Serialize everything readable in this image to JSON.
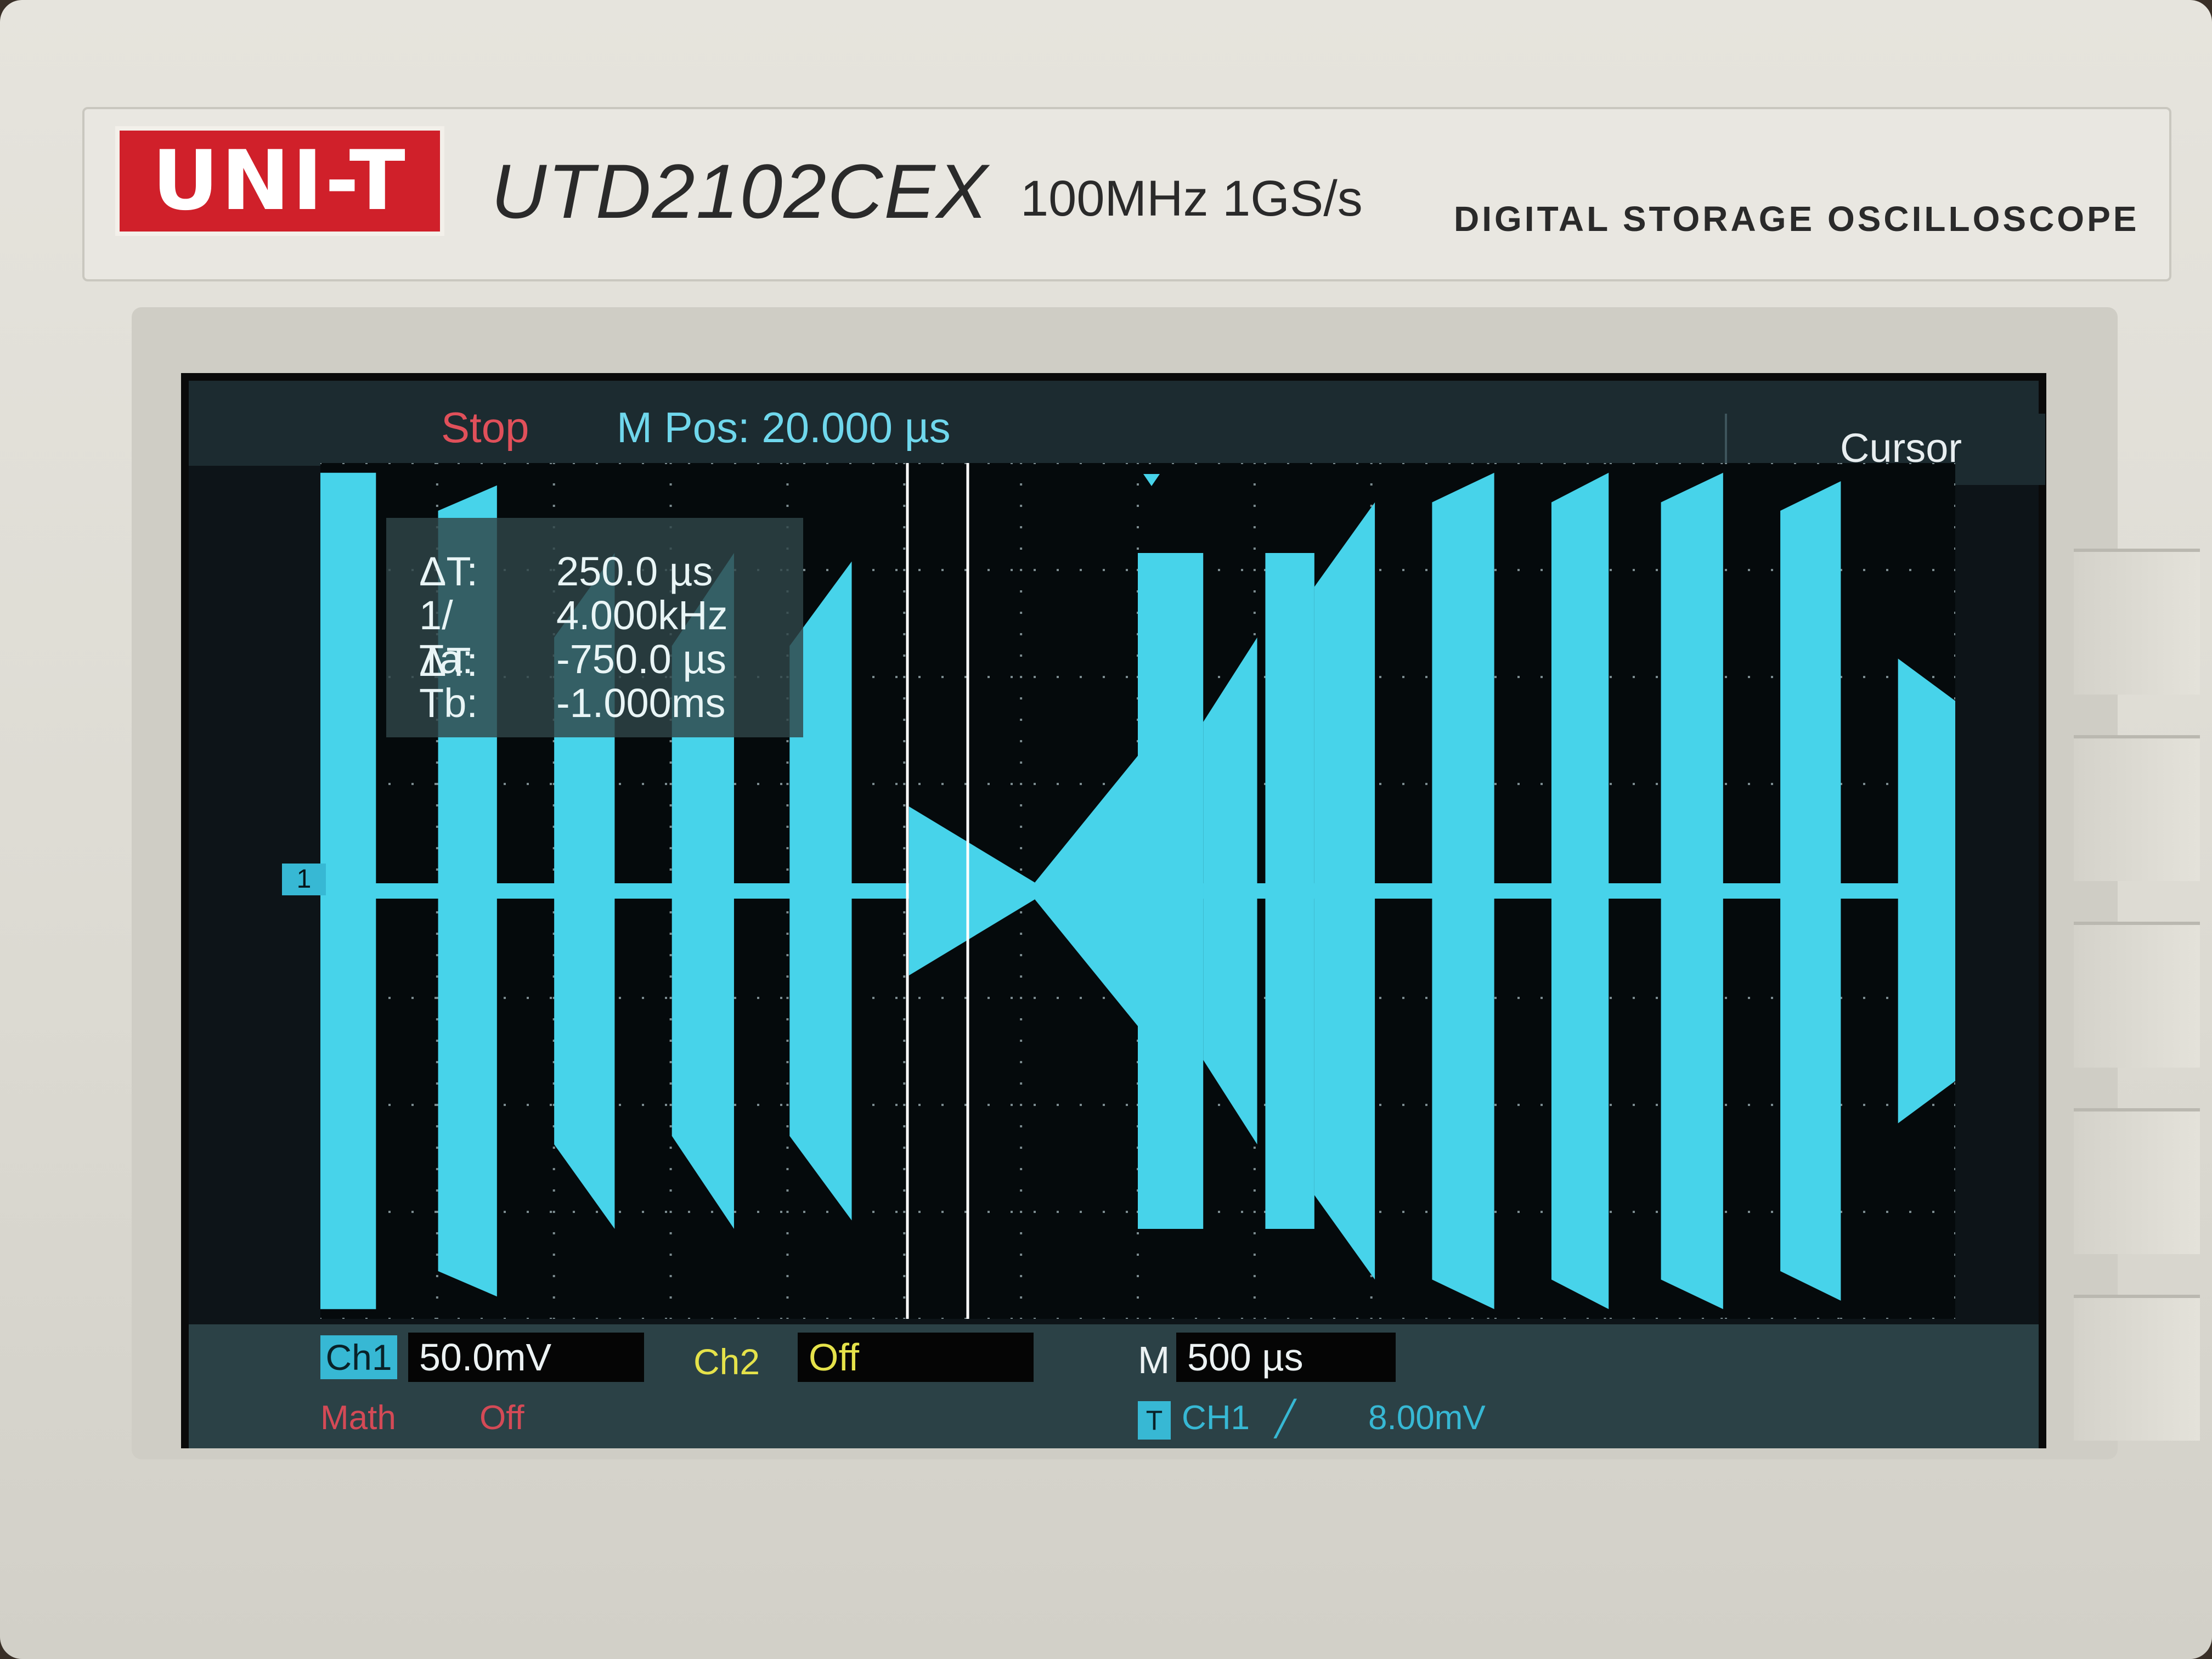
{
  "device": {
    "brand": "UNI-T",
    "model": "UTD2102CEX",
    "specs": "100MHz  1GS/s",
    "type_label": "DIGITAL STORAGE OSCILLOSCOPE"
  },
  "status": {
    "run_state": "Stop",
    "m_pos": "M Pos: 20.000 µs",
    "menu": "Cursor"
  },
  "cursor_readout": {
    "delta_t_label": "ΔT:",
    "delta_t_value": "250.0 µs",
    "inv_delta_t_label": "1/ΔT:",
    "inv_delta_t_value": "4.000kHz",
    "ta_label": "Ta:",
    "ta_value": "-750.0 µs",
    "tb_label": "Tb:",
    "tb_value": "-1.000ms"
  },
  "channel_marker": "1",
  "bottom": {
    "ch1_label": "Ch1",
    "ch1_scale": "50.0mV",
    "ch2_label": "Ch2",
    "ch2_state": "Off",
    "math_label": "Math",
    "math_state": "Off",
    "timebase_label": "M",
    "timebase_value": "500 µs",
    "trigger_icon": "T",
    "trigger_source": "CH1",
    "trigger_slope": "╱",
    "trigger_level": "8.00mV"
  },
  "colors": {
    "trace": "#47d3ea",
    "stop": "#e0505a",
    "ch2": "#e5e24a",
    "math": "#d44a56"
  },
  "waveform": {
    "description_free": true,
    "bursts": [
      {
        "start": 0.0,
        "end": 0.034,
        "amp_start": 0.99,
        "amp_end": 0.99
      },
      {
        "start": 0.072,
        "end": 0.108,
        "amp_start": 0.9,
        "amp_end": 0.96
      },
      {
        "start": 0.143,
        "end": 0.18,
        "amp_start": 0.6,
        "amp_end": 0.8
      },
      {
        "start": 0.215,
        "end": 0.253,
        "amp_start": 0.58,
        "amp_end": 0.8
      },
      {
        "start": 0.287,
        "end": 0.325,
        "amp_start": 0.58,
        "amp_end": 0.78
      },
      {
        "start": 0.36,
        "end": 0.437,
        "amp_start": 0.2,
        "amp_end": 0.02
      },
      {
        "start": 0.437,
        "end": 0.5,
        "amp_start": 0.02,
        "amp_end": 0.32
      },
      {
        "start": 0.5,
        "end": 0.54,
        "amp_start": 0.8,
        "amp_end": 0.8
      },
      {
        "start": 0.54,
        "end": 0.573,
        "amp_start": 0.4,
        "amp_end": 0.6
      },
      {
        "start": 0.578,
        "end": 0.608,
        "amp_start": 0.8,
        "amp_end": 0.8
      },
      {
        "start": 0.608,
        "end": 0.645,
        "amp_start": 0.72,
        "amp_end": 0.92
      },
      {
        "start": 0.68,
        "end": 0.718,
        "amp_start": 0.92,
        "amp_end": 0.99
      },
      {
        "start": 0.753,
        "end": 0.788,
        "amp_start": 0.92,
        "amp_end": 0.99
      },
      {
        "start": 0.82,
        "end": 0.858,
        "amp_start": 0.92,
        "amp_end": 0.99
      },
      {
        "start": 0.893,
        "end": 0.93,
        "amp_start": 0.9,
        "amp_end": 0.97
      },
      {
        "start": 0.965,
        "end": 1.0,
        "amp_start": 0.55,
        "amp_end": 0.45
      }
    ]
  }
}
